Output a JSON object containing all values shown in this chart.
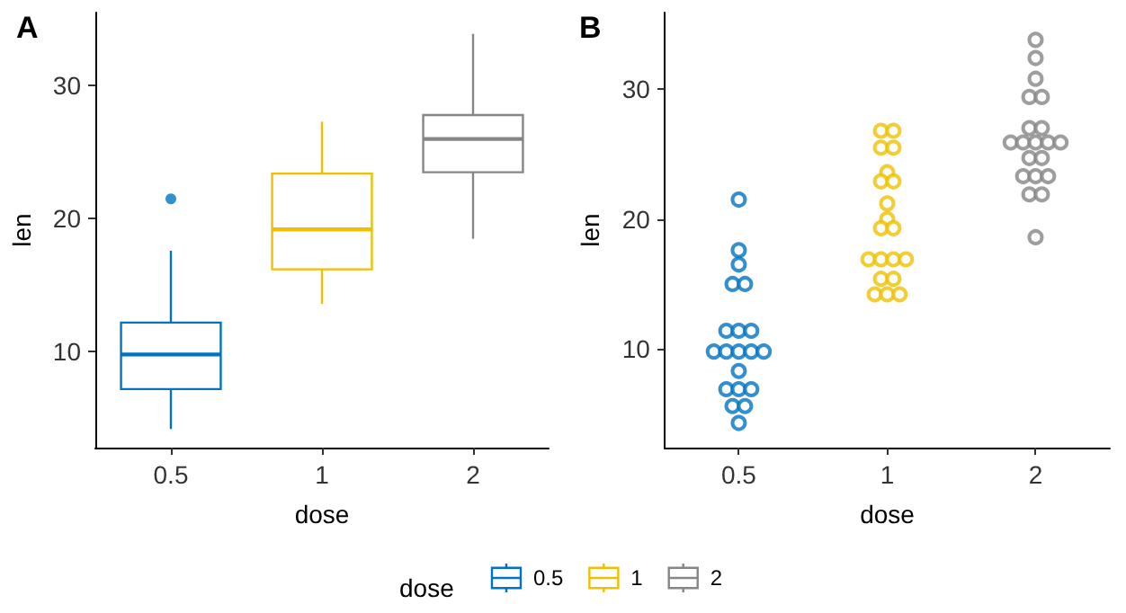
{
  "chart_data": [
    {
      "type": "box",
      "title": "A",
      "xlabel": "dose",
      "ylabel": "len",
      "legend_title": "dose",
      "legend": "bottom",
      "grid": false,
      "categories": [
        "0.5",
        "1",
        "2"
      ],
      "ylim": [
        2.8,
        35.5
      ],
      "yticks": [
        10,
        20,
        30
      ],
      "series": [
        {
          "name": "0.5",
          "color": "#0073c2",
          "boxes": [
            {
              "low": 4.2,
              "q1": 7.2,
              "median": 9.8,
              "q3": 12.2,
              "high": 17.6,
              "outliers": [
                21.5
              ]
            },
            null,
            null
          ]
        },
        {
          "name": "1",
          "color": "#efc000",
          "boxes": [
            null,
            {
              "low": 13.6,
              "q1": 16.2,
              "median": 19.2,
              "q3": 23.4,
              "high": 27.3
            },
            null
          ]
        },
        {
          "name": "2",
          "color": "#868686",
          "boxes": [
            null,
            null,
            {
              "low": 18.5,
              "q1": 23.5,
              "median": 26.0,
              "q3": 27.8,
              "high": 33.9
            }
          ]
        }
      ]
    },
    {
      "type": "scatter",
      "title": "B",
      "xlabel": "dose",
      "ylabel": "len",
      "legend": false,
      "grid": false,
      "marker": "circle",
      "categories": [
        "0.5",
        "1",
        "2"
      ],
      "ylim": [
        2.4,
        35.9
      ],
      "yticks": [
        10,
        20,
        30
      ],
      "series": [
        {
          "color": "#0073c2",
          "x": [
            "0.5",
            "0.5",
            "0.5",
            "0.5",
            "0.5",
            "0.5",
            "0.5",
            "0.5",
            "0.5",
            "0.5",
            "0.5",
            "0.5",
            "0.5",
            "0.5",
            "0.5",
            "0.5",
            "0.5",
            "0.5",
            "0.5",
            "0.5"
          ],
          "values": [
            21.5,
            17.6,
            16.5,
            15.0,
            15.0,
            11.4,
            11.4,
            11.4,
            9.8,
            9.8,
            9.8,
            9.8,
            9.8,
            8.3,
            6.9,
            6.9,
            6.9,
            5.6,
            5.6,
            4.3
          ]
        },
        {
          "color": "#efc000",
          "x": [
            "1",
            "1",
            "1",
            "1",
            "1",
            "1",
            "1",
            "1",
            "1",
            "1",
            "1",
            "1",
            "1",
            "1",
            "1",
            "1",
            "1",
            "1",
            "1",
            "1"
          ],
          "values": [
            26.8,
            26.8,
            25.5,
            25.5,
            23.6,
            22.9,
            22.9,
            21.2,
            20.0,
            19.3,
            19.3,
            16.9,
            16.9,
            16.9,
            16.9,
            15.4,
            15.4,
            14.2,
            14.2,
            14.2
          ]
        },
        {
          "color": "#868686",
          "x": [
            "2",
            "2",
            "2",
            "2",
            "2",
            "2",
            "2",
            "2",
            "2",
            "2",
            "2",
            "2",
            "2",
            "2",
            "2",
            "2",
            "2",
            "2",
            "2",
            "2"
          ],
          "values": [
            33.8,
            32.4,
            30.8,
            29.4,
            29.4,
            27.0,
            27.0,
            25.9,
            25.9,
            25.9,
            25.9,
            25.9,
            24.7,
            24.7,
            23.3,
            23.3,
            23.3,
            21.9,
            21.9,
            18.6
          ]
        }
      ]
    }
  ]
}
